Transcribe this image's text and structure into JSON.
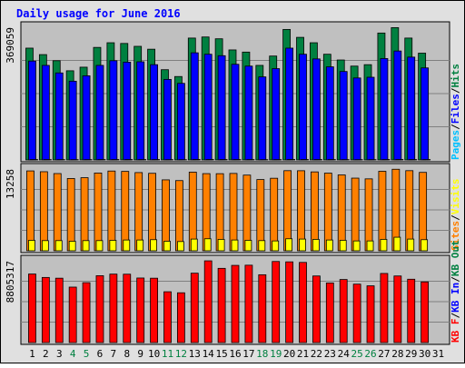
{
  "chart_data": {
    "type": "bar",
    "title": "Daily usage for June 2016",
    "colors": {
      "title": "#0000ff",
      "panel_bg": "#c0c0c0",
      "frame_bg": "#e0e0e0",
      "hits": "#008040",
      "files": "#0000ff",
      "pages": "#00c0ff",
      "visits": "#ffff00",
      "sites": "#ff8000",
      "kb_in": "#0000ff",
      "kb_out": "#008040",
      "kb_f": "#ff0000",
      "weekend_label": "#008040",
      "weekday_label": "#000000",
      "separator": "#000000"
    },
    "categories": [
      "1",
      "2",
      "3",
      "4",
      "5",
      "6",
      "7",
      "8",
      "9",
      "10",
      "11",
      "12",
      "13",
      "14",
      "15",
      "16",
      "17",
      "18",
      "19",
      "20",
      "21",
      "22",
      "23",
      "24",
      "25",
      "26",
      "27",
      "28",
      "29",
      "30",
      "31"
    ],
    "weekend_days": [
      "4",
      "5",
      "11",
      "12",
      "18",
      "19",
      "25",
      "26"
    ],
    "legend_sep": "/",
    "panels": [
      {
        "id": "hits_files_pages",
        "axis_label": "369059",
        "ylim": [
          0,
          369059
        ],
        "legend": [
          "Pages",
          "Files",
          "Hits"
        ],
        "series": [
          {
            "name": "Hits",
            "color": "#008040",
            "values": [
              311000,
              293000,
              276000,
              248000,
              258000,
              313000,
              326000,
              324000,
              316000,
              308000,
              251000,
              232000,
              339000,
              342000,
              337000,
              306000,
              300000,
              263000,
              289000,
              363000,
              341000,
              326000,
              294000,
              278000,
              261000,
              265000,
              353000,
              368000,
              339000,
              297000,
              null
            ]
          },
          {
            "name": "Files",
            "color": "#0000ff",
            "values": [
              275000,
              263000,
              242000,
              219000,
              234000,
              263000,
              276000,
              272000,
              273000,
              265000,
              224000,
              213000,
              298000,
              294000,
              290000,
              266000,
              261000,
              231000,
              254000,
              311000,
              294000,
              281000,
              259000,
              246000,
              228000,
              230000,
              282000,
              303000,
              286000,
              256000,
              null
            ]
          },
          {
            "name": "Pages",
            "color": "#00c0ff",
            "values": [
              1200,
              1100,
              1000,
              900,
              1000,
              1100,
              1200,
              1200,
              1100,
              1100,
              900,
              800,
              1300,
              1300,
              1200,
              1100,
              1100,
              900,
              1000,
              1300,
              1200,
              1200,
              1100,
              1000,
              900,
              900,
              1200,
              1300,
              1200,
              1100,
              null
            ]
          }
        ]
      },
      {
        "id": "visits_sites",
        "axis_label": "13258",
        "ylim": [
          0,
          13258
        ],
        "legend": [
          "Sites",
          "Visits"
        ],
        "series": [
          {
            "name": "Sites",
            "color": "#ff8000",
            "values": [
              12950,
              12820,
              12520,
              11720,
              11850,
              12610,
              12930,
              12870,
              12680,
              12560,
              11500,
              11380,
              12750,
              12510,
              12500,
              12540,
              12270,
              11550,
              11760,
              12990,
              12980,
              12790,
              12590,
              12300,
              11780,
              11660,
              12890,
              13220,
              12990,
              12710,
              null
            ]
          },
          {
            "name": "Visits",
            "color": "#ffff00",
            "values": [
              1700,
              1650,
              1650,
              1550,
              1650,
              1650,
              1700,
              1750,
              1750,
              1800,
              1550,
              1500,
              1900,
              1950,
              1850,
              1750,
              1700,
              1650,
              1600,
              1950,
              1900,
              1850,
              1750,
              1700,
              1600,
              1600,
              1850,
              2200,
              1900,
              1800,
              null
            ]
          }
        ]
      },
      {
        "id": "kbytes",
        "axis_label": "8805317",
        "ylim": [
          0,
          8805317
        ],
        "legend": [
          "KB F",
          "KB In",
          "KB Out"
        ],
        "series": [
          {
            "name": "KB F",
            "color": "#ff0000",
            "values": [
              7380000,
              7010000,
              6930000,
              5970000,
              6450000,
              7200000,
              7370000,
              7360000,
              6950000,
              6930000,
              5470000,
              5360000,
              7470000,
              8800000,
              7990000,
              8310000,
              8330000,
              7300000,
              8730000,
              8690000,
              8630000,
              7170000,
              6420000,
              6790000,
              6290000,
              6110000,
              7440000,
              7170000,
              6820000,
              6530000,
              null
            ]
          },
          {
            "name": "KB In",
            "color": "#0000ff",
            "values": [
              0,
              0,
              0,
              0,
              0,
              0,
              0,
              0,
              0,
              0,
              0,
              0,
              0,
              0,
              0,
              0,
              0,
              0,
              0,
              0,
              0,
              0,
              0,
              0,
              0,
              0,
              0,
              0,
              0,
              0,
              null
            ]
          },
          {
            "name": "KB Out",
            "color": "#008040",
            "values": [
              0,
              0,
              0,
              0,
              0,
              0,
              0,
              0,
              0,
              0,
              0,
              0,
              0,
              0,
              0,
              0,
              0,
              0,
              0,
              0,
              0,
              0,
              0,
              0,
              0,
              0,
              0,
              0,
              0,
              0,
              null
            ]
          }
        ]
      }
    ]
  }
}
